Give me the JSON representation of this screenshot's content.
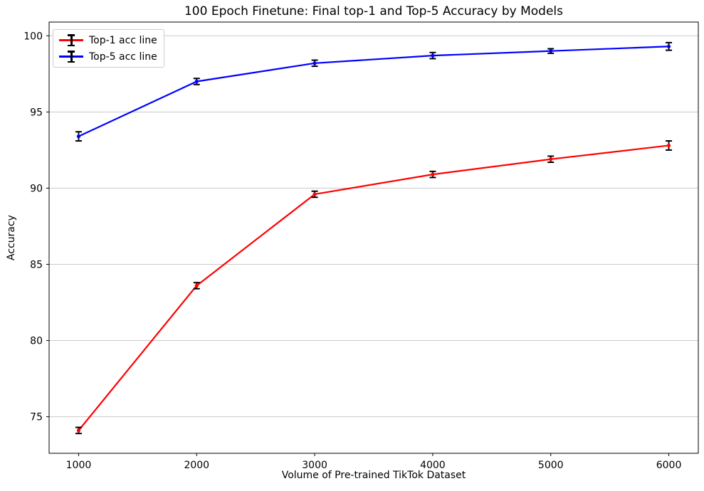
{
  "chart_data": {
    "type": "line",
    "title": "100 Epoch Finetune: Final top-1 and Top-5 Accuracy by Models",
    "xlabel": "Volume of Pre-trained TikTok Dataset",
    "ylabel": "Accuracy",
    "x": [
      1000,
      2000,
      3000,
      4000,
      5000,
      6000
    ],
    "xticks": [
      "1000",
      "2000",
      "3000",
      "4000",
      "5000",
      "6000"
    ],
    "yticks": [
      "75",
      "80",
      "85",
      "90",
      "95",
      "100"
    ],
    "xlim": [
      750,
      6250
    ],
    "ylim": [
      72.6,
      100.9
    ],
    "grid": "horizontal",
    "grid_color": "#c9c9c9",
    "errorbar_color": "#000000",
    "legend_position": "upper-left",
    "series": [
      {
        "name": "Top-1 acc line",
        "color": "#ff0000",
        "values": [
          74.1,
          83.6,
          89.6,
          90.9,
          91.9,
          92.8
        ],
        "yerr": [
          0.2,
          0.2,
          0.2,
          0.2,
          0.2,
          0.3
        ]
      },
      {
        "name": "Top-5 acc line",
        "color": "#0000ff",
        "values": [
          93.4,
          97.0,
          98.2,
          98.7,
          99.0,
          99.3
        ],
        "yerr": [
          0.3,
          0.2,
          0.2,
          0.2,
          0.15,
          0.25
        ]
      }
    ]
  }
}
